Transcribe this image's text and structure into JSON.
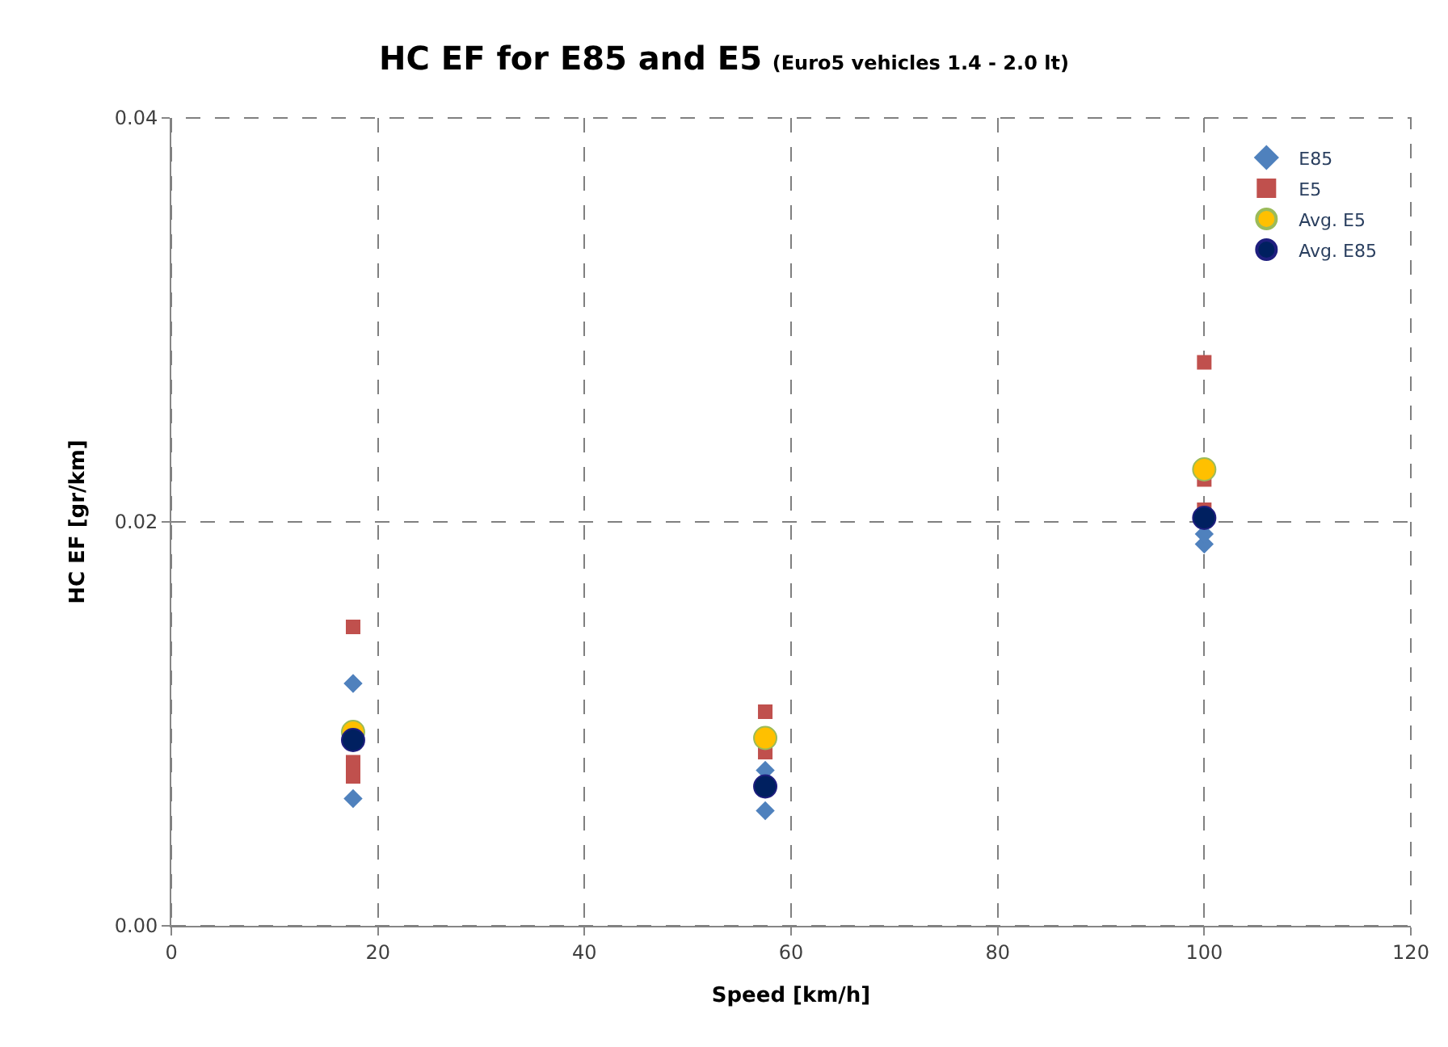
{
  "chart_data": {
    "type": "scatter",
    "title": "HC EF for E85 and E5",
    "subtitle": "(Euro5 vehicles 1.4 - 2.0 lt)",
    "xlabel": "Speed [km/h]",
    "ylabel": "HC EF [gr/km]",
    "xlim": [
      0,
      120
    ],
    "xticks": [
      0,
      20,
      40,
      60,
      80,
      100,
      120
    ],
    "ylim": [
      0,
      0.04
    ],
    "yticks": [
      {
        "value": 0,
        "label": "0.00"
      },
      {
        "value": 0.02,
        "label": "0.02"
      },
      {
        "value": 0.04,
        "label": "0.04"
      }
    ],
    "grid": true,
    "legend": "top right",
    "series": [
      {
        "name": "E85",
        "color": "#4f81bd",
        "marker": "diamond",
        "x": [
          17.6,
          17.6,
          57.5,
          57.5,
          100,
          100
        ],
        "values": [
          0.012,
          0.0063,
          0.0057,
          0.0077,
          0.0189,
          0.0194
        ]
      },
      {
        "name": "E5",
        "color": "#c0504d",
        "marker": "square",
        "x": [
          17.6,
          17.6,
          17.6,
          57.5,
          57.5,
          100,
          100,
          100
        ],
        "values": [
          0.0148,
          0.0081,
          0.0074,
          0.0106,
          0.0086,
          0.0279,
          0.0221,
          0.0206
        ]
      },
      {
        "name": "Avg. E5",
        "color": "#ffc000",
        "marker": "circle",
        "x": [
          17.6,
          57.5,
          100
        ],
        "values": [
          0.0096,
          0.0093,
          0.0226
        ]
      },
      {
        "name": "Avg. E85",
        "color": "#002060",
        "marker": "circle",
        "x": [
          17.6,
          57.5,
          100
        ],
        "values": [
          0.0092,
          0.0069,
          0.0202
        ]
      }
    ]
  }
}
